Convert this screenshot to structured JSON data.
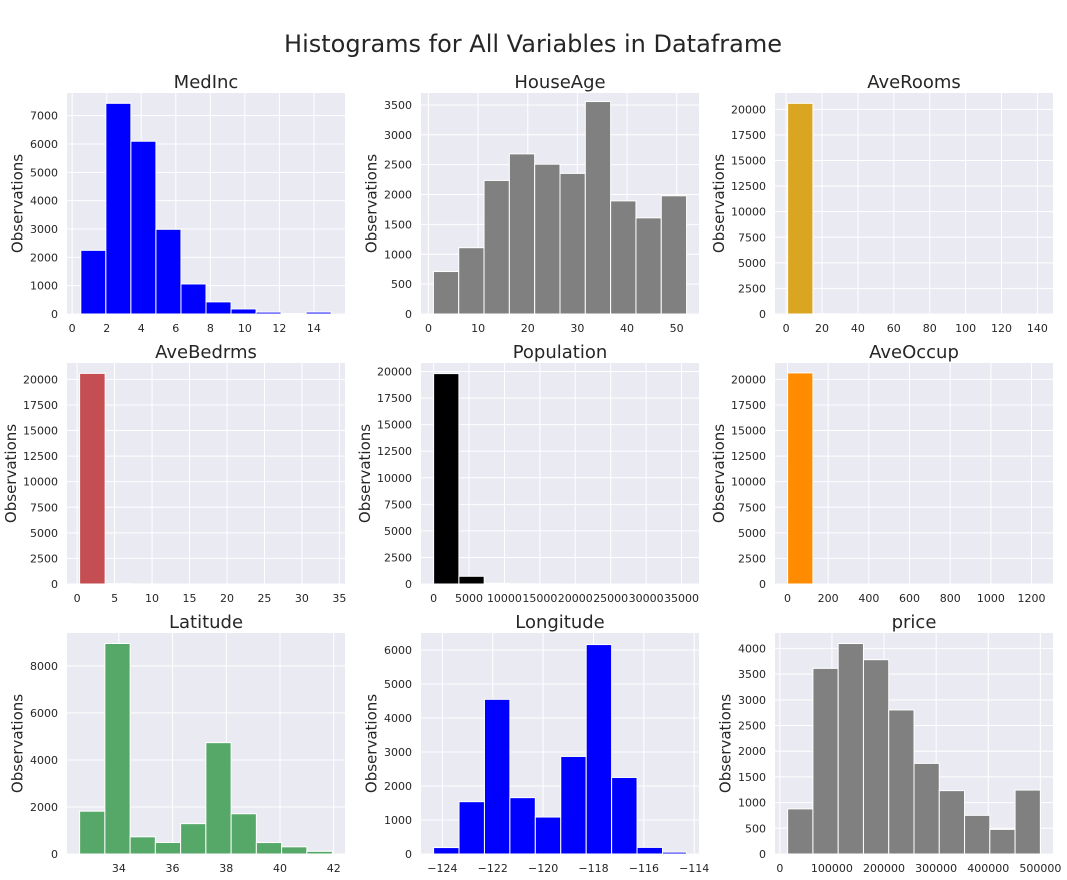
{
  "figure": {
    "title": "Histograms for All Variables in Dataframe",
    "background": "#ffffff",
    "panel_background": "#eaeaf2"
  },
  "chart_data": [
    {
      "type": "bar",
      "title": "MedInc",
      "ylabel": "Observations",
      "color": "#0000ff",
      "bin_edges": [
        0.4999,
        1.95,
        3.4,
        4.85,
        6.3,
        7.75,
        9.2,
        10.65,
        12.1,
        13.55,
        15.0001
      ],
      "values": [
        2247,
        7436,
        6098,
        2990,
        1060,
        428,
        178,
        67,
        18,
        68
      ],
      "xlim": [
        -0.3,
        15.8
      ],
      "ylim": [
        0,
        7800
      ],
      "xticks": [
        0,
        2,
        4,
        6,
        8,
        10,
        12,
        14
      ],
      "xtick_labels": [
        "0",
        "2",
        "4",
        "6",
        "8",
        "10",
        "12",
        "14"
      ],
      "yticks": [
        0,
        1000,
        2000,
        3000,
        4000,
        5000,
        6000,
        7000
      ],
      "ytick_labels": [
        "0",
        "1000",
        "2000",
        "3000",
        "4000",
        "5000",
        "6000",
        "7000"
      ]
    },
    {
      "type": "bar",
      "title": "HouseAge",
      "ylabel": "Observations",
      "color": "#808080",
      "bin_edges": [
        1,
        6.1,
        11.2,
        16.3,
        21.4,
        26.5,
        31.6,
        36.7,
        41.8,
        46.9,
        52
      ],
      "values": [
        711,
        1110,
        2236,
        2681,
        2508,
        2354,
        3557,
        1894,
        1610,
        1979
      ],
      "xlim": [
        -1.5,
        54.5
      ],
      "ylim": [
        0,
        3700
      ],
      "xticks": [
        0,
        10,
        20,
        30,
        40,
        50
      ],
      "xtick_labels": [
        "0",
        "10",
        "20",
        "30",
        "40",
        "50"
      ],
      "yticks": [
        0,
        500,
        1000,
        1500,
        2000,
        2500,
        3000,
        3500
      ],
      "ytick_labels": [
        "0",
        "500",
        "1000",
        "1500",
        "2000",
        "2500",
        "3000",
        "3500"
      ]
    },
    {
      "type": "bar",
      "title": "AveRooms",
      "ylabel": "Observations",
      "color": "#daa520",
      "bin_edges": [
        0.846,
        14.93,
        29.01,
        43.1,
        57.18,
        71.26,
        85.34,
        99.43,
        113.51,
        127.59,
        141.68
      ],
      "values": [
        20590,
        28,
        10,
        4,
        0,
        2,
        0,
        0,
        0,
        1
      ],
      "xlim": [
        -6.2,
        148.7
      ],
      "ylim": [
        0,
        21600
      ],
      "xticks": [
        0,
        20,
        40,
        60,
        80,
        100,
        120,
        140
      ],
      "xtick_labels": [
        "0",
        "20",
        "40",
        "60",
        "80",
        "100",
        "120",
        "140"
      ],
      "yticks": [
        0,
        2500,
        5000,
        7500,
        10000,
        12500,
        15000,
        17500,
        20000
      ],
      "ytick_labels": [
        "0",
        "2500",
        "5000",
        "7500",
        "10000",
        "12500",
        "15000",
        "17500",
        "20000"
      ]
    },
    {
      "type": "bar",
      "title": "AveBedrms",
      "ylabel": "Observations",
      "color": "#c44e52",
      "bin_edges": [
        0.333,
        3.74,
        7.15,
        10.56,
        13.97,
        17.38,
        20.78,
        24.19,
        27.6,
        31.01,
        34.07
      ],
      "values": [
        20585,
        34,
        5,
        2,
        1,
        2,
        0,
        0,
        0,
        1
      ],
      "xlim": [
        -1.35,
        35.75
      ],
      "ylim": [
        0,
        21600
      ],
      "xticks": [
        0,
        5,
        10,
        15,
        20,
        25,
        30,
        35
      ],
      "xtick_labels": [
        "0",
        "5",
        "10",
        "15",
        "20",
        "25",
        "30",
        "35"
      ],
      "yticks": [
        0,
        2500,
        5000,
        7500,
        10000,
        12500,
        15000,
        17500,
        20000
      ],
      "ytick_labels": [
        "0",
        "2500",
        "5000",
        "7500",
        "10000",
        "12500",
        "15000",
        "17500",
        "20000"
      ]
    },
    {
      "type": "bar",
      "title": "Population",
      "ylabel": "Observations",
      "color": "#000000",
      "bin_edges": [
        3,
        3570,
        7137,
        10704,
        14271,
        17838,
        21405,
        24972,
        28539,
        32106,
        35682
      ],
      "values": [
        19803,
        727,
        65,
        21,
        7,
        2,
        0,
        2,
        0,
        1
      ],
      "xlim": [
        -1781,
        37466
      ],
      "ylim": [
        0,
        20800
      ],
      "xticks": [
        0,
        5000,
        10000,
        15000,
        20000,
        25000,
        30000,
        35000
      ],
      "xtick_labels": [
        "0",
        "5000",
        "10000",
        "15000",
        "20000",
        "25000",
        "30000",
        "35000"
      ],
      "yticks": [
        0,
        2500,
        5000,
        7500,
        10000,
        12500,
        15000,
        17500,
        20000
      ],
      "ytick_labels": [
        "0",
        "2500",
        "5000",
        "7500",
        "10000",
        "12500",
        "15000",
        "17500",
        "20000"
      ]
    },
    {
      "type": "bar",
      "title": "AveOccup",
      "ylabel": "Observations",
      "color": "#ff8c00",
      "bin_edges": [
        0.69,
        124.97,
        249.26,
        373.54,
        497.83,
        622.11,
        746.4,
        870.68,
        994.97,
        1119.25,
        1243.33
      ],
      "values": [
        20632,
        2,
        1,
        0,
        0,
        0,
        0,
        0,
        0,
        1
      ],
      "xlim": [
        -61.4,
        1305.4
      ],
      "ylim": [
        0,
        21600
      ],
      "xticks": [
        0,
        200,
        400,
        600,
        800,
        1000,
        1200
      ],
      "xtick_labels": [
        "0",
        "200",
        "400",
        "600",
        "800",
        "1000",
        "1200"
      ],
      "yticks": [
        0,
        2500,
        5000,
        7500,
        10000,
        12500,
        15000,
        17500,
        20000
      ],
      "ytick_labels": [
        "0",
        "2500",
        "5000",
        "7500",
        "10000",
        "12500",
        "15000",
        "17500",
        "20000"
      ]
    },
    {
      "type": "bar",
      "title": "Latitude",
      "ylabel": "Observations",
      "color": "#55a868",
      "bin_edges": [
        32.54,
        33.48,
        34.42,
        35.36,
        36.3,
        37.24,
        38.18,
        39.12,
        40.06,
        41.0,
        41.95
      ],
      "values": [
        1821,
        8953,
        731,
        491,
        1291,
        4736,
        1712,
        486,
        305,
        114
      ],
      "xlim": [
        32.07,
        42.42
      ],
      "ylim": [
        0,
        9400
      ],
      "xticks": [
        34,
        36,
        38,
        40,
        42
      ],
      "xtick_labels": [
        "34",
        "36",
        "38",
        "40",
        "42"
      ],
      "yticks": [
        0,
        2000,
        4000,
        6000,
        8000
      ],
      "ytick_labels": [
        "0",
        "2000",
        "4000",
        "6000",
        "8000"
      ]
    },
    {
      "type": "bar",
      "title": "Longitude",
      "ylabel": "Observations",
      "color": "#0000ff",
      "bin_edges": [
        -124.35,
        -123.34,
        -122.33,
        -121.32,
        -120.31,
        -119.3,
        -118.29,
        -117.28,
        -116.27,
        -115.26,
        -114.31
      ],
      "values": [
        189,
        1539,
        4549,
        1657,
        1087,
        2869,
        6160,
        2251,
        194,
        55
      ],
      "xlim": [
        -124.85,
        -113.81
      ],
      "ylim": [
        0,
        6500
      ],
      "xticks": [
        -124,
        -122,
        -120,
        -118,
        -116,
        -114
      ],
      "xtick_labels": [
        "−124",
        "−122",
        "−120",
        "−118",
        "−116",
        "−114"
      ],
      "yticks": [
        0,
        1000,
        2000,
        3000,
        4000,
        5000,
        6000
      ],
      "ytick_labels": [
        "0",
        "1000",
        "2000",
        "3000",
        "4000",
        "5000",
        "6000"
      ]
    },
    {
      "type": "bar",
      "title": "price",
      "ylabel": "Observations",
      "color": "#808080",
      "bin_edges": [
        14999,
        63500,
        112001,
        160501,
        209002,
        257502,
        306003,
        354503,
        403004,
        451504,
        500001
      ],
      "values": [
        878,
        3612,
        4095,
        3781,
        2803,
        1763,
        1233,
        752,
        479,
        1244
      ],
      "xlim": [
        -9276,
        524276
      ],
      "ylim": [
        0,
        4300
      ],
      "xticks": [
        0,
        100000,
        200000,
        300000,
        400000,
        500000
      ],
      "xtick_labels": [
        "0",
        "100000",
        "200000",
        "300000",
        "400000",
        "500000"
      ],
      "yticks": [
        0,
        500,
        1000,
        1500,
        2000,
        2500,
        3000,
        3500,
        4000
      ],
      "ytick_labels": [
        "0",
        "500",
        "1000",
        "1500",
        "2000",
        "2500",
        "3000",
        "3500",
        "4000"
      ]
    }
  ]
}
